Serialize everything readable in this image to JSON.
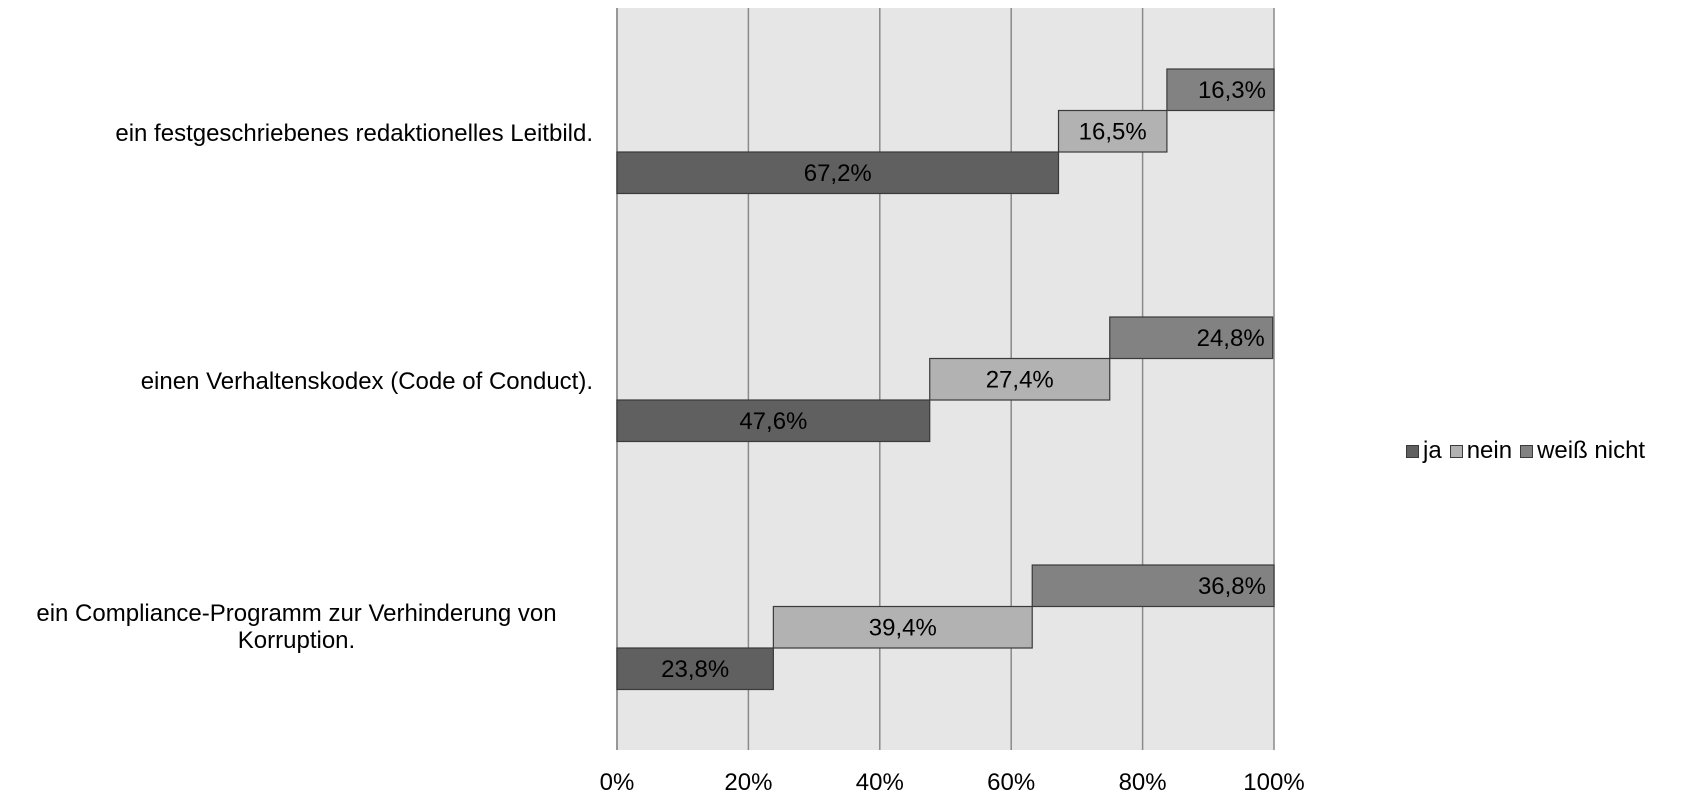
{
  "chart_data": {
    "type": "bar",
    "orientation": "horizontal",
    "stacked": true,
    "categories": [
      "ein festgeschriebenes redaktionelles Leitbild.",
      "einen Verhaltenskodex (Code of Conduct).",
      "ein Compliance-Programm zur Verhinderung von Korruption."
    ],
    "series": [
      {
        "name": "ja",
        "values": [
          67.2,
          47.6,
          23.8
        ],
        "labels": [
          "67,2%",
          "47,6%",
          "23,8%"
        ],
        "color": "#606060"
      },
      {
        "name": "nein",
        "values": [
          16.5,
          27.4,
          39.4
        ],
        "labels": [
          "16,5%",
          "27,4%",
          "39,4%"
        ],
        "color": "#b2b2b2"
      },
      {
        "name": "weiß nicht",
        "values": [
          16.3,
          24.8,
          36.8
        ],
        "labels": [
          "16,3%",
          "24,8%",
          "36,8%"
        ],
        "color": "#828282"
      }
    ],
    "xlim": [
      0,
      100
    ],
    "xticks": [
      "0%",
      "20%",
      "40%",
      "60%",
      "80%",
      "100%"
    ],
    "grid": true,
    "plot_background": "#e6e6e6",
    "legend_position": "right"
  }
}
